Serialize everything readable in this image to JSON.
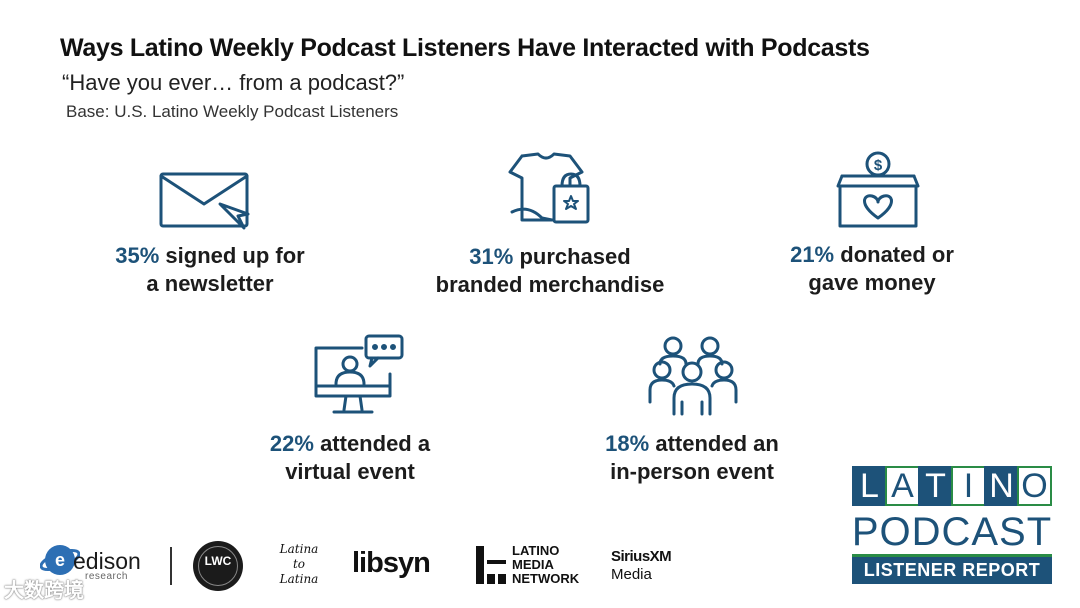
{
  "header": {
    "title": "Ways Latino Weekly Podcast Listeners Have Interacted with Podcasts",
    "subtitle": "“Have you ever… from a podcast?”",
    "base": "Base: U.S. Latino Weekly Podcast Listeners"
  },
  "stats": [
    {
      "percent": "35%",
      "line1": "signed up for",
      "line2": "a newsletter",
      "icon": "envelope-cursor-icon"
    },
    {
      "percent": "31%",
      "line1": "purchased",
      "line2": "branded merchandise",
      "icon": "tshirt-bag-icon"
    },
    {
      "percent": "21%",
      "line1": "donated or",
      "line2": "gave money",
      "icon": "donation-box-icon"
    },
    {
      "percent": "22%",
      "line1": "attended a",
      "line2": "virtual event",
      "icon": "monitor-chat-icon"
    },
    {
      "percent": "18%",
      "line1": "attended an",
      "line2": "in-person event",
      "icon": "crowd-icon"
    }
  ],
  "colors": {
    "accent": "#1d5279",
    "green": "#2a8c46",
    "icon_stroke": "#1d5279"
  },
  "logos": {
    "edison": "edison",
    "edison_sub": "research",
    "lwc": "LWC",
    "latina": "Latina to Latina",
    "libsyn": "libsyn",
    "lmn": [
      "LATINO",
      "MEDIA",
      "NETWORK"
    ],
    "siriusxm_1": "SiriusXM",
    "siriusxm_2": "Media"
  },
  "badge": {
    "letters": [
      "L",
      "A",
      "T",
      "I",
      "N",
      "O"
    ],
    "podcast": "PODCAST",
    "report": "LISTENER REPORT"
  },
  "watermark": "大数跨境"
}
